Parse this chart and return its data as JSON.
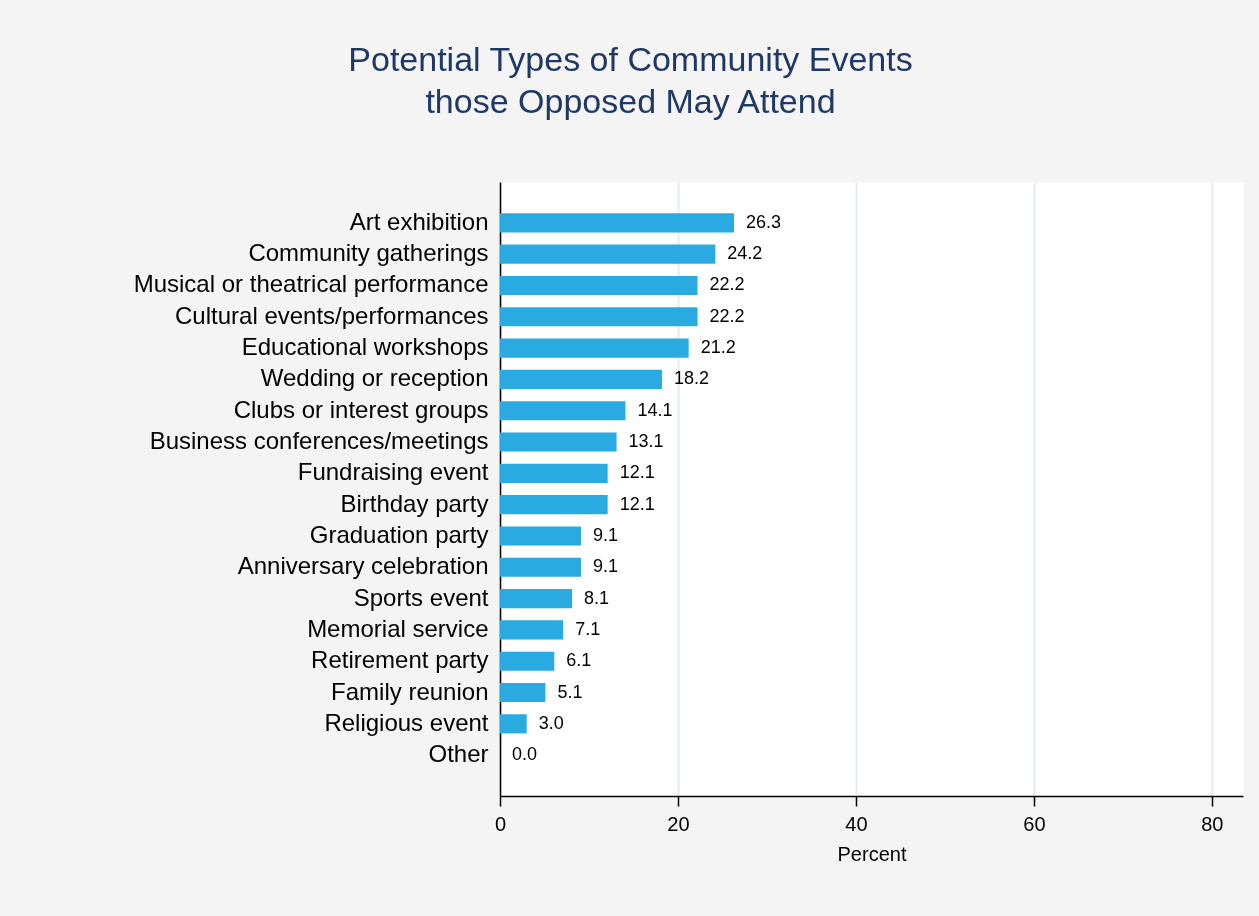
{
  "chart_data": {
    "type": "bar",
    "orientation": "horizontal",
    "title": "Potential Types of Community Events\nthose Opposed May Attend",
    "xlabel": "Percent",
    "categories": [
      "Art exhibition",
      "Community gatherings",
      "Musical or theatrical performance",
      "Cultural events/performances",
      "Educational workshops",
      "Wedding or reception",
      "Clubs or interest groups",
      "Business conferences/meetings",
      "Fundraising event",
      "Birthday party",
      "Graduation party",
      "Anniversary celebration",
      "Sports event",
      "Memorial service",
      "Retirement party",
      "Family reunion",
      "Religious event",
      "Other"
    ],
    "values": [
      26.3,
      24.2,
      22.2,
      22.2,
      21.2,
      18.2,
      14.1,
      13.1,
      12.1,
      12.1,
      9.1,
      9.1,
      8.1,
      7.1,
      6.1,
      5.1,
      3.0,
      0.0
    ],
    "value_labels": [
      "26.3",
      "24.2",
      "22.2",
      "22.2",
      "21.2",
      "18.2",
      "14.1",
      "13.1",
      "12.1",
      "12.1",
      "9.1",
      "9.1",
      "8.1",
      "7.1",
      "6.1",
      "5.1",
      "3.0",
      "0.0"
    ],
    "color": "#29abe2",
    "xlim": [
      0,
      83.5
    ],
    "xticks": [
      0,
      20,
      40,
      60,
      80
    ],
    "grid": "x"
  }
}
